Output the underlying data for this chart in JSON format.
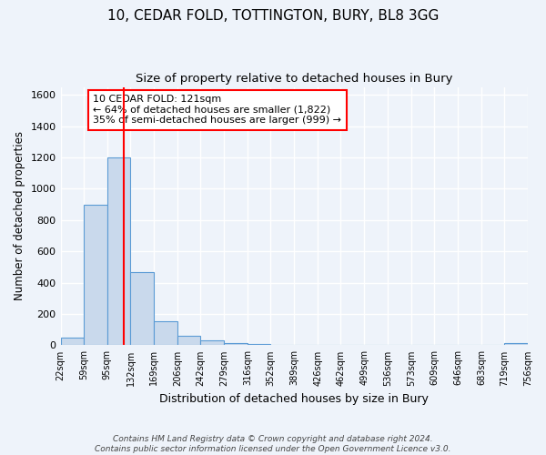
{
  "title1": "10, CEDAR FOLD, TOTTINGTON, BURY, BL8 3GG",
  "title2": "Size of property relative to detached houses in Bury",
  "xlabel": "Distribution of detached houses by size in Bury",
  "ylabel": "Number of detached properties",
  "bin_edges": [
    22,
    59,
    95,
    132,
    169,
    206,
    242,
    279,
    316,
    352,
    389,
    426,
    462,
    499,
    536,
    573,
    609,
    646,
    683,
    719,
    756
  ],
  "bar_heights": [
    50,
    900,
    1200,
    465,
    155,
    60,
    30,
    15,
    8,
    5,
    3,
    2,
    2,
    2,
    1,
    1,
    1,
    1,
    1,
    15
  ],
  "bar_color": "#c9d9ec",
  "bar_edge_color": "#5b9bd5",
  "property_size": 121,
  "vline_color": "red",
  "annotation_text": "10 CEDAR FOLD: 121sqm\n← 64% of detached houses are smaller (1,822)\n35% of semi-detached houses are larger (999) →",
  "annotation_box_color": "white",
  "annotation_box_edge_color": "red",
  "ylim": [
    0,
    1650
  ],
  "yticks": [
    0,
    200,
    400,
    600,
    800,
    1000,
    1200,
    1400,
    1600
  ],
  "footer1": "Contains HM Land Registry data © Crown copyright and database right 2024.",
  "footer2": "Contains public sector information licensed under the Open Government Licence v3.0.",
  "bg_color": "#eef3fa",
  "grid_color": "white",
  "title1_fontsize": 11,
  "title2_fontsize": 9.5
}
